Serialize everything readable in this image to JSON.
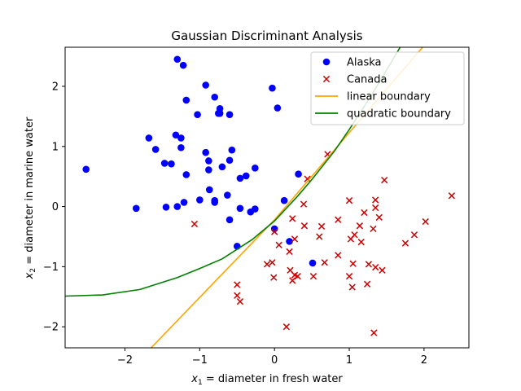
{
  "chart_data": {
    "type": "scatter",
    "title": "Gaussian Discriminant Analysis",
    "xlabel": {
      "var": "x",
      "sub": "1",
      "rest": " = diameter in fresh water"
    },
    "ylabel": {
      "var": "x",
      "sub": "2",
      "rest": " = diameter in marine water"
    },
    "xlim": [
      -2.8,
      2.6
    ],
    "ylim": [
      -2.35,
      2.65
    ],
    "xticks": [
      -2,
      -1,
      0,
      1,
      2
    ],
    "yticks": [
      -2,
      -1,
      0,
      1,
      2
    ],
    "grid": false,
    "legend_position": "top-right",
    "series": [
      {
        "name": "Alaska",
        "kind": "scatter",
        "marker": "circle",
        "color": "#0000ff",
        "points": [
          [
            -2.52,
            0.62
          ],
          [
            -1.85,
            -0.03
          ],
          [
            -1.68,
            1.14
          ],
          [
            -1.59,
            0.95
          ],
          [
            -1.47,
            0.72
          ],
          [
            -1.45,
            -0.01
          ],
          [
            -1.38,
            0.71
          ],
          [
            -1.32,
            1.19
          ],
          [
            -1.3,
            2.45
          ],
          [
            -1.3,
            0.0
          ],
          [
            -1.25,
            1.14
          ],
          [
            -1.25,
            0.98
          ],
          [
            -1.22,
            2.35
          ],
          [
            -1.21,
            0.07
          ],
          [
            -1.18,
            1.77
          ],
          [
            -1.18,
            0.53
          ],
          [
            -1.03,
            1.53
          ],
          [
            -1.0,
            0.11
          ],
          [
            -0.92,
            2.02
          ],
          [
            -0.92,
            0.9
          ],
          [
            -0.88,
            0.76
          ],
          [
            -0.88,
            0.61
          ],
          [
            -0.87,
            0.28
          ],
          [
            -0.8,
            1.82
          ],
          [
            -0.8,
            0.1
          ],
          [
            -0.8,
            0.07
          ],
          [
            -0.75,
            1.55
          ],
          [
            -0.73,
            1.63
          ],
          [
            -0.73,
            1.55
          ],
          [
            -0.7,
            0.66
          ],
          [
            -0.63,
            0.19
          ],
          [
            -0.6,
            1.53
          ],
          [
            -0.6,
            0.77
          ],
          [
            -0.6,
            -0.22
          ],
          [
            -0.57,
            0.94
          ],
          [
            -0.5,
            -0.66
          ],
          [
            -0.46,
            0.47
          ],
          [
            -0.46,
            -0.03
          ],
          [
            -0.38,
            0.51
          ],
          [
            -0.32,
            -0.09
          ],
          [
            -0.26,
            0.64
          ],
          [
            -0.26,
            -0.04
          ],
          [
            -0.03,
            1.97
          ],
          [
            0.0,
            -0.37
          ],
          [
            0.04,
            1.64
          ],
          [
            0.13,
            0.1
          ],
          [
            0.2,
            -0.58
          ],
          [
            0.32,
            0.54
          ],
          [
            0.51,
            -0.94
          ]
        ]
      },
      {
        "name": "Canada",
        "kind": "scatter",
        "marker": "x",
        "color": "#cc0000",
        "points": [
          [
            -1.07,
            -0.29
          ],
          [
            -0.5,
            -1.3
          ],
          [
            -0.5,
            -1.48
          ],
          [
            -0.46,
            -1.58
          ],
          [
            -0.1,
            -0.96
          ],
          [
            -0.03,
            -0.93
          ],
          [
            -0.01,
            -1.18
          ],
          [
            0.0,
            -0.42
          ],
          [
            0.06,
            -0.64
          ],
          [
            0.16,
            -2.0
          ],
          [
            0.2,
            -0.75
          ],
          [
            0.21,
            -1.06
          ],
          [
            0.24,
            -0.2
          ],
          [
            0.24,
            -1.23
          ],
          [
            0.27,
            -1.14
          ],
          [
            0.27,
            -0.54
          ],
          [
            0.31,
            -1.16
          ],
          [
            0.39,
            0.04
          ],
          [
            0.4,
            -0.32
          ],
          [
            0.44,
            0.46
          ],
          [
            0.52,
            -1.16
          ],
          [
            0.6,
            -0.5
          ],
          [
            0.63,
            -0.33
          ],
          [
            0.67,
            -0.93
          ],
          [
            0.71,
            0.87
          ],
          [
            0.85,
            -0.81
          ],
          [
            0.85,
            -0.22
          ],
          [
            1.0,
            0.1
          ],
          [
            1.0,
            -1.16
          ],
          [
            1.02,
            -0.54
          ],
          [
            1.04,
            -1.34
          ],
          [
            1.05,
            -0.95
          ],
          [
            1.07,
            -0.47
          ],
          [
            1.14,
            -0.32
          ],
          [
            1.16,
            -0.59
          ],
          [
            1.2,
            -0.1
          ],
          [
            1.24,
            -1.29
          ],
          [
            1.26,
            -0.96
          ],
          [
            1.32,
            -0.37
          ],
          [
            1.33,
            -2.1
          ],
          [
            1.35,
            0.11
          ],
          [
            1.35,
            -0.02
          ],
          [
            1.35,
            -1.01
          ],
          [
            1.4,
            -0.18
          ],
          [
            1.44,
            -1.06
          ],
          [
            1.47,
            0.44
          ],
          [
            1.75,
            -0.61
          ],
          [
            1.87,
            -0.47
          ],
          [
            2.02,
            -0.25
          ],
          [
            2.37,
            0.18
          ]
        ]
      },
      {
        "name": "linear boundary",
        "kind": "line",
        "color": "#ffa500",
        "points": [
          [
            -1.65,
            -2.35
          ],
          [
            0.0,
            -0.22
          ],
          [
            1.98,
            2.65
          ]
        ]
      },
      {
        "name": "quadratic boundary",
        "kind": "line",
        "color": "#008000",
        "points": [
          [
            -2.8,
            -1.49
          ],
          [
            -2.3,
            -1.47
          ],
          [
            -1.8,
            -1.38
          ],
          [
            -1.3,
            -1.18
          ],
          [
            -1.0,
            -1.03
          ],
          [
            -0.7,
            -0.87
          ],
          [
            -0.3,
            -0.55
          ],
          [
            0.0,
            -0.24
          ],
          [
            0.3,
            0.16
          ],
          [
            0.5,
            0.45
          ],
          [
            0.8,
            0.92
          ],
          [
            1.0,
            1.28
          ],
          [
            1.3,
            1.86
          ],
          [
            1.5,
            2.27
          ],
          [
            1.68,
            2.65
          ]
        ]
      }
    ]
  }
}
